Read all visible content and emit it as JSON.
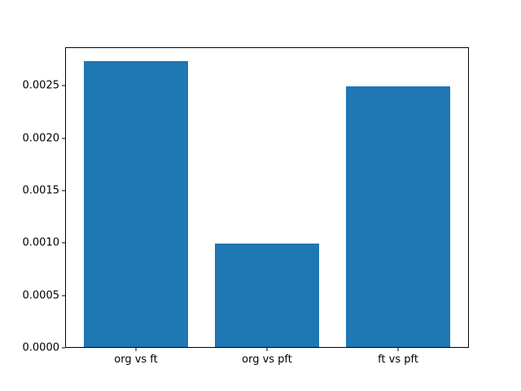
{
  "figure": {
    "background_color": "#ffffff",
    "spine_color": "#000000",
    "text_color": "#000000"
  },
  "chart_data": {
    "type": "bar",
    "title": "",
    "xlabel": "",
    "ylabel": "",
    "categories": [
      "org vs ft",
      "org vs pft",
      "ft vs pft"
    ],
    "values": [
      0.00273,
      0.00099,
      0.00249
    ],
    "bar_color": "#1f77b4",
    "bar_width_fraction": 0.8,
    "ylim": [
      0,
      0.0028665
    ],
    "yticks": [
      0.0,
      0.0005,
      0.001,
      0.0015,
      0.002,
      0.0025
    ],
    "ytick_labels": [
      "0.0000",
      "0.0005",
      "0.0010",
      "0.0015",
      "0.0020",
      "0.0025"
    ],
    "grid": false,
    "legend": "none"
  }
}
